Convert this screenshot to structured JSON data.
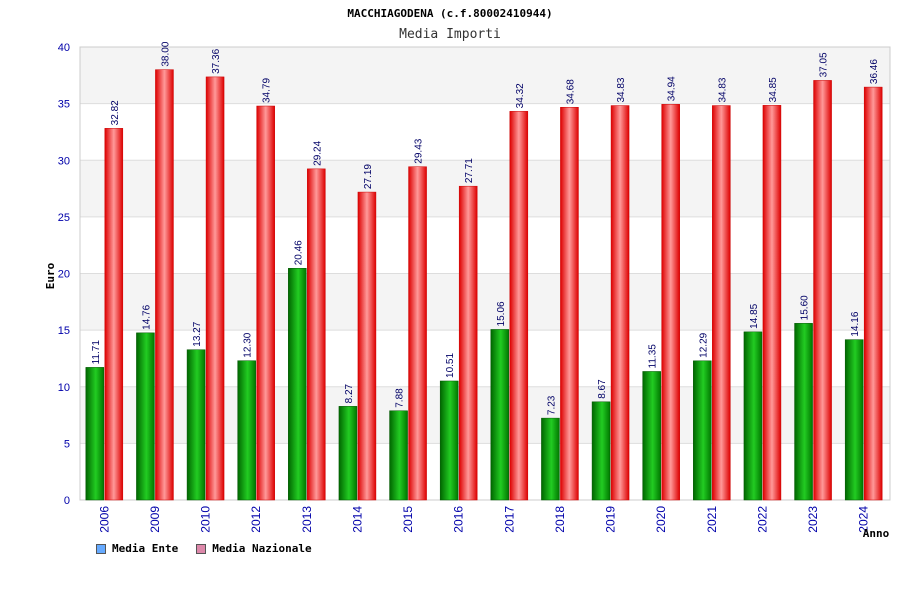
{
  "chart_data": {
    "type": "bar",
    "title": "MACCHIAGODENA (c.f.80002410944)",
    "subtitle": "Media Importi",
    "xlabel": "Anno",
    "ylabel": "Euro",
    "ylim": [
      0,
      40
    ],
    "yticks": [
      0,
      5,
      10,
      15,
      20,
      25,
      30,
      35,
      40
    ],
    "grid": true,
    "legend_position": "bottom-left",
    "categories": [
      "2006",
      "2009",
      "2010",
      "2012",
      "2013",
      "2014",
      "2015",
      "2016",
      "2017",
      "2018",
      "2019",
      "2020",
      "2021",
      "2022",
      "2023",
      "2024"
    ],
    "series": [
      {
        "name": "Media Ente",
        "color": "#00aa00",
        "legend_color": "#66aaff",
        "values": [
          11.71,
          14.76,
          13.27,
          12.3,
          20.46,
          8.27,
          7.88,
          10.51,
          15.06,
          7.23,
          8.67,
          11.35,
          12.29,
          14.85,
          15.6,
          14.16
        ],
        "labels": [
          "11.71",
          "14.76",
          "13.27",
          "12.30",
          "20.46",
          "8.27",
          "7.88",
          "10.51",
          "15.06",
          "7.23",
          "8.67",
          "11.35",
          "12.29",
          "14.85",
          "15.60",
          "14.16"
        ]
      },
      {
        "name": "Media Nazionale",
        "color": "#ee1111",
        "legend_color": "#dd88aa",
        "values": [
          32.82,
          38.0,
          37.36,
          34.79,
          29.24,
          27.19,
          29.43,
          27.71,
          34.32,
          34.68,
          34.83,
          34.94,
          34.83,
          34.85,
          37.05,
          36.46
        ],
        "labels": [
          "32.82",
          "38.00",
          "37.36",
          "34.79",
          "29.24",
          "27.19",
          "29.43",
          "27.71",
          "34.32",
          "34.68",
          "34.83",
          "34.94",
          "34.83",
          "34.85",
          "37.05",
          "36.46"
        ]
      }
    ]
  }
}
